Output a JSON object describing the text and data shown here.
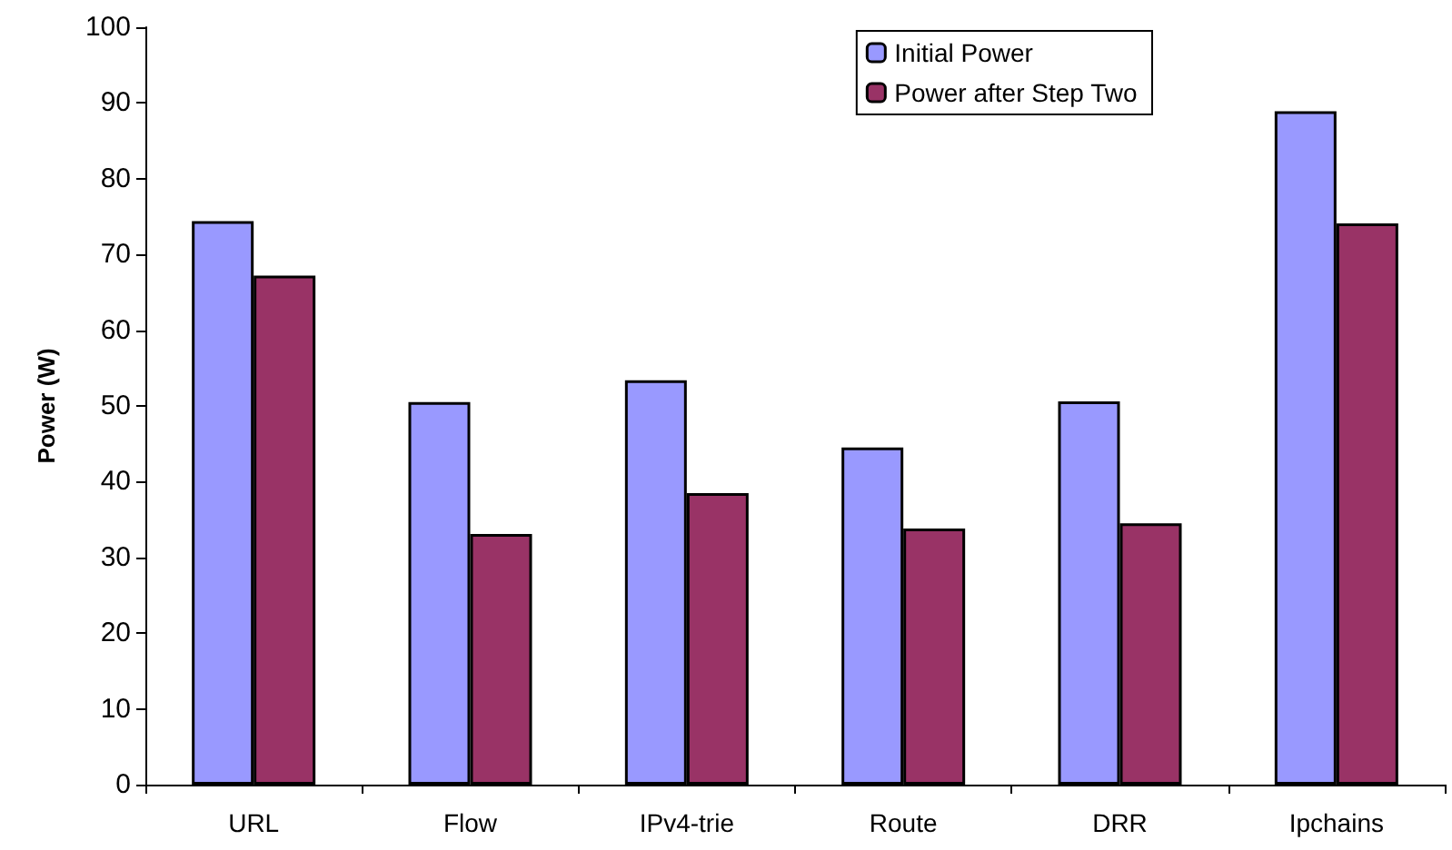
{
  "chart_data": {
    "type": "bar",
    "ylabel": "Power (W)",
    "categories": [
      "URL",
      "Flow",
      "IPv4-trie",
      "Route",
      "DRR",
      "Ipchains"
    ],
    "series": [
      {
        "name": "Initial Power",
        "color": "#9999ff",
        "values": [
          74.4,
          50.5,
          53.4,
          44.5,
          50.6,
          88.9
        ]
      },
      {
        "name": "Power after Step Two",
        "color": "#993366",
        "values": [
          67.2,
          33.1,
          38.5,
          33.8,
          34.5,
          74.1
        ]
      }
    ],
    "ylim": [
      0,
      100
    ],
    "yticks": [
      0,
      10,
      20,
      30,
      40,
      50,
      60,
      70,
      80,
      90,
      100
    ],
    "grid": false,
    "legend": "top right"
  }
}
